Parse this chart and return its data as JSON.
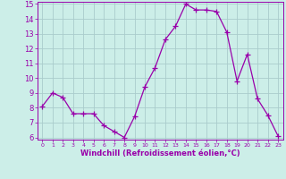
{
  "x": [
    0,
    1,
    2,
    3,
    4,
    5,
    6,
    7,
    8,
    9,
    10,
    11,
    12,
    13,
    14,
    15,
    16,
    17,
    18,
    19,
    20,
    21,
    22,
    23
  ],
  "y": [
    8.1,
    9.0,
    8.7,
    7.6,
    7.6,
    7.6,
    6.8,
    6.4,
    6.0,
    7.4,
    9.4,
    10.7,
    12.6,
    13.5,
    15.0,
    14.6,
    14.6,
    14.5,
    13.1,
    9.8,
    11.6,
    8.6,
    7.5,
    6.1
  ],
  "line_color": "#9900aa",
  "marker": "+",
  "marker_size": 4,
  "bg_color": "#cceee8",
  "grid_color": "#aacccc",
  "xlabel": "Windchill (Refroidissement éolien,°C)",
  "xlabel_color": "#9900aa",
  "tick_color": "#9900aa",
  "ylim": [
    6,
    15
  ],
  "xlim": [
    -0.5,
    23.5
  ],
  "yticks": [
    6,
    7,
    8,
    9,
    10,
    11,
    12,
    13,
    14,
    15
  ],
  "xticks": [
    0,
    1,
    2,
    3,
    4,
    5,
    6,
    7,
    8,
    9,
    10,
    11,
    12,
    13,
    14,
    15,
    16,
    17,
    18,
    19,
    20,
    21,
    22,
    23
  ],
  "spine_color": "#9900aa"
}
